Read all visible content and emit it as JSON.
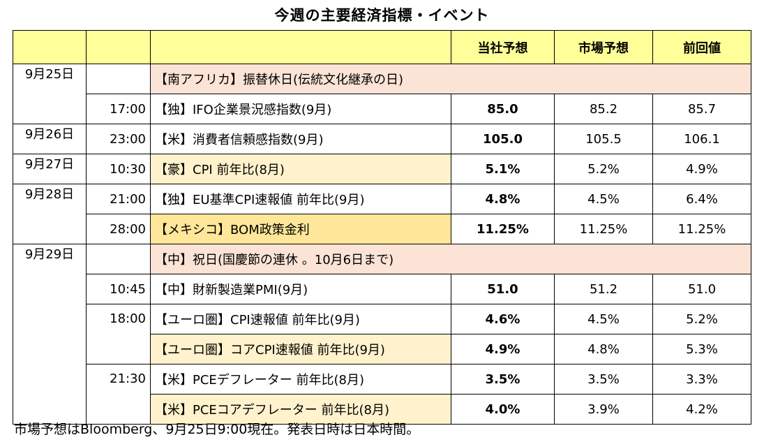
{
  "title": "今週の主要経済指標・イベント",
  "header": {
    "col1": "",
    "col2": "",
    "col3": "",
    "own": "当社予想",
    "market": "市場予想",
    "prev": "前回値"
  },
  "rows": [
    {
      "event": "【南アフリカ】振替休日(伝統文化継承の日)"
    },
    {
      "time": "17:00",
      "event": "【独】IFO企業景況感指数(9月)",
      "own": "85.0",
      "market": "85.2",
      "prev": "85.7"
    },
    {
      "time": "23:00",
      "event": "【米】消費者信頼感指数(9月)",
      "own": "105.0",
      "market": "105.5",
      "prev": "106.1"
    },
    {
      "time": "10:30",
      "event": "【豪】CPI 前年比(8月)",
      "own": "5.1%",
      "market": "5.2%",
      "prev": "4.9%"
    },
    {
      "time": "21:00",
      "event": "【独】EU基準CPI速報値 前年比(9月)",
      "own": "4.8%",
      "market": "4.5%",
      "prev": "6.4%"
    },
    {
      "time": "28:00",
      "event": "【メキシコ】BOM政策金利",
      "own": "11.25%",
      "market": "11.25%",
      "prev": "11.25%"
    },
    {
      "event": "【中】祝日(国慶節の連休 。10月6日まで)"
    },
    {
      "time": "10:45",
      "event": "【中】財新製造業PMI(9月)",
      "own": "51.0",
      "market": "51.2",
      "prev": "51.0"
    },
    {
      "time": "18:00",
      "event": "【ユーロ圏】CPI速報値 前年比(9月)",
      "own": "4.6%",
      "market": "4.5%",
      "prev": "5.2%"
    },
    {
      "event": "【ユーロ圏】コアCPI速報値 前年比(9月)",
      "own": "4.9%",
      "market": "4.8%",
      "prev": "5.3%"
    },
    {
      "time": "21:30",
      "event": "【米】PCEデフレーター 前年比(8月)",
      "own": "3.5%",
      "market": "3.5%",
      "prev": "3.3%"
    },
    {
      "event": "【米】PCEコアデフレーター 前年比(8月)",
      "own": "4.0%",
      "market": "3.9%",
      "prev": "4.2%"
    }
  ],
  "dates": [
    "9月25日",
    "9月26日",
    "9月27日",
    "9月28日",
    "9月29日"
  ],
  "footer": "市場予想はBloomberg、9月25日9:00現在。発表日時は日本時間。",
  "colors": {
    "header": "#ffff99",
    "holiday": "#fbe3d6",
    "highlight": "#fff2cc",
    "policy": "#ffe699"
  }
}
